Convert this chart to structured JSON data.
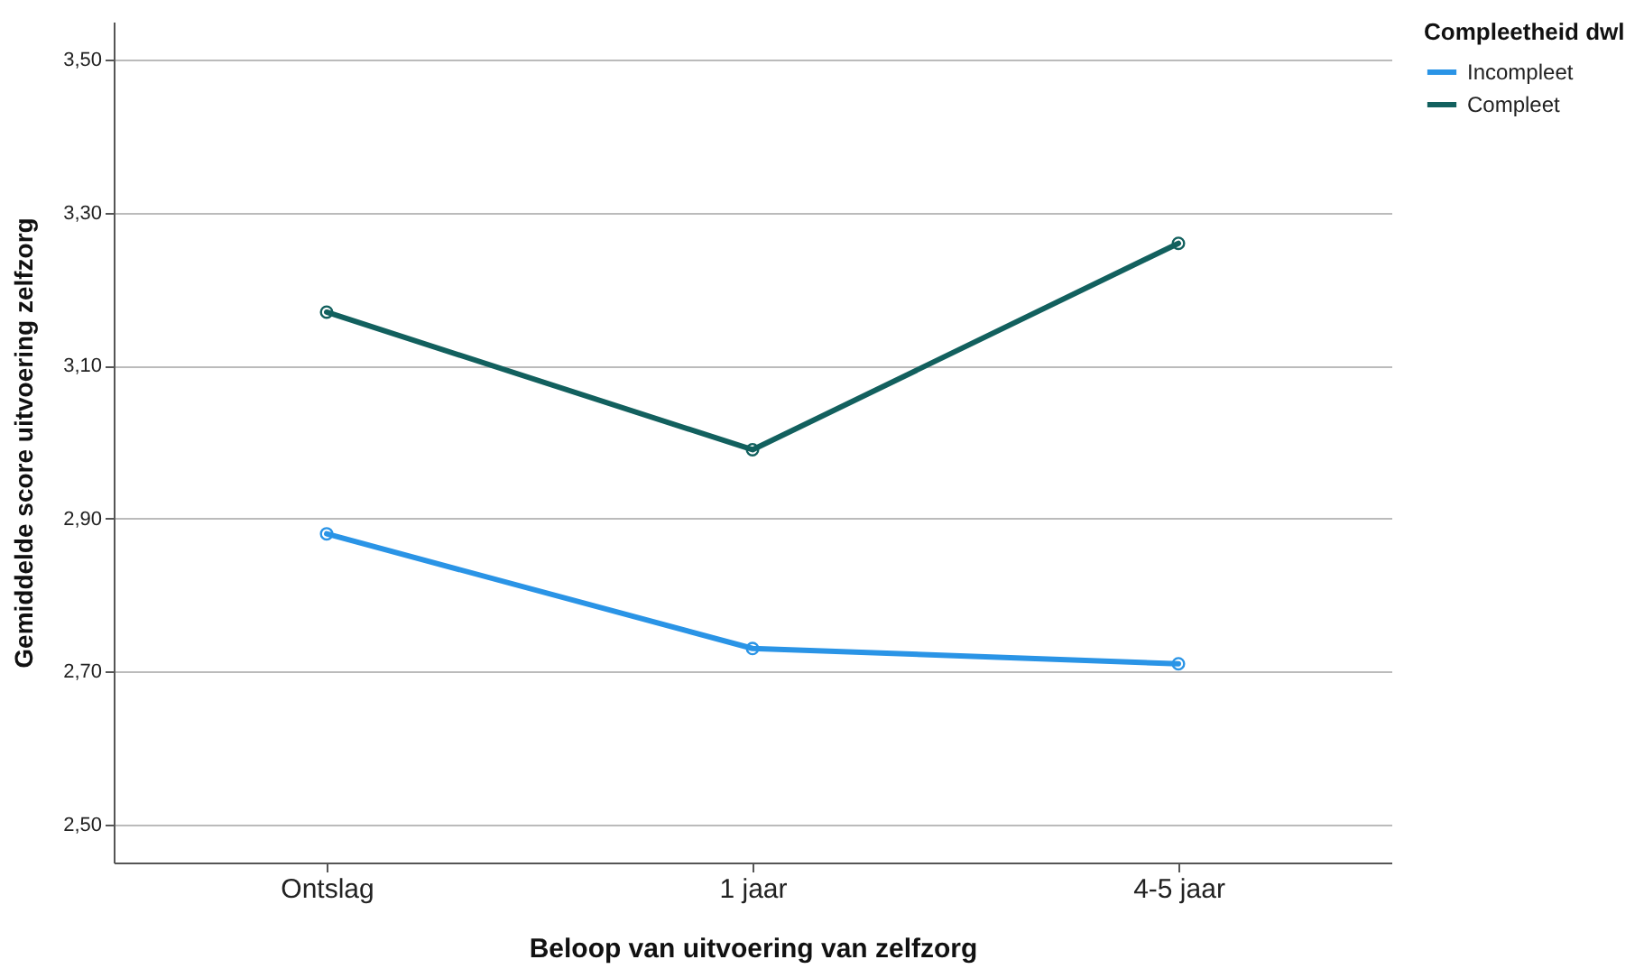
{
  "chart_data": {
    "type": "line",
    "xlabel": "Beloop van uitvoering van zelfzorg",
    "ylabel": "Gemiddelde score uitvoering zelfzorg",
    "legend_title": "Compleetheid dwl",
    "categories": [
      "Ontslag",
      "1 jaar",
      "4-5 jaar"
    ],
    "series": [
      {
        "name": "Incompleet",
        "color": "#2a94e6",
        "values": [
          2.88,
          2.73,
          2.71
        ]
      },
      {
        "name": "Compleet",
        "color": "#12605e",
        "values": [
          3.17,
          2.99,
          3.26
        ]
      }
    ],
    "ylim": [
      2.45,
      3.55
    ],
    "yticks": [
      {
        "value": 2.5,
        "label": "2,50"
      },
      {
        "value": 2.7,
        "label": "2,70"
      },
      {
        "value": 2.9,
        "label": "2,90"
      },
      {
        "value": 3.1,
        "label": "3,10"
      },
      {
        "value": 3.3,
        "label": "3,30"
      },
      {
        "value": 3.5,
        "label": "3,50"
      }
    ],
    "grid": "y",
    "legend": "top right",
    "marker": "circle",
    "line_style": "solid"
  }
}
